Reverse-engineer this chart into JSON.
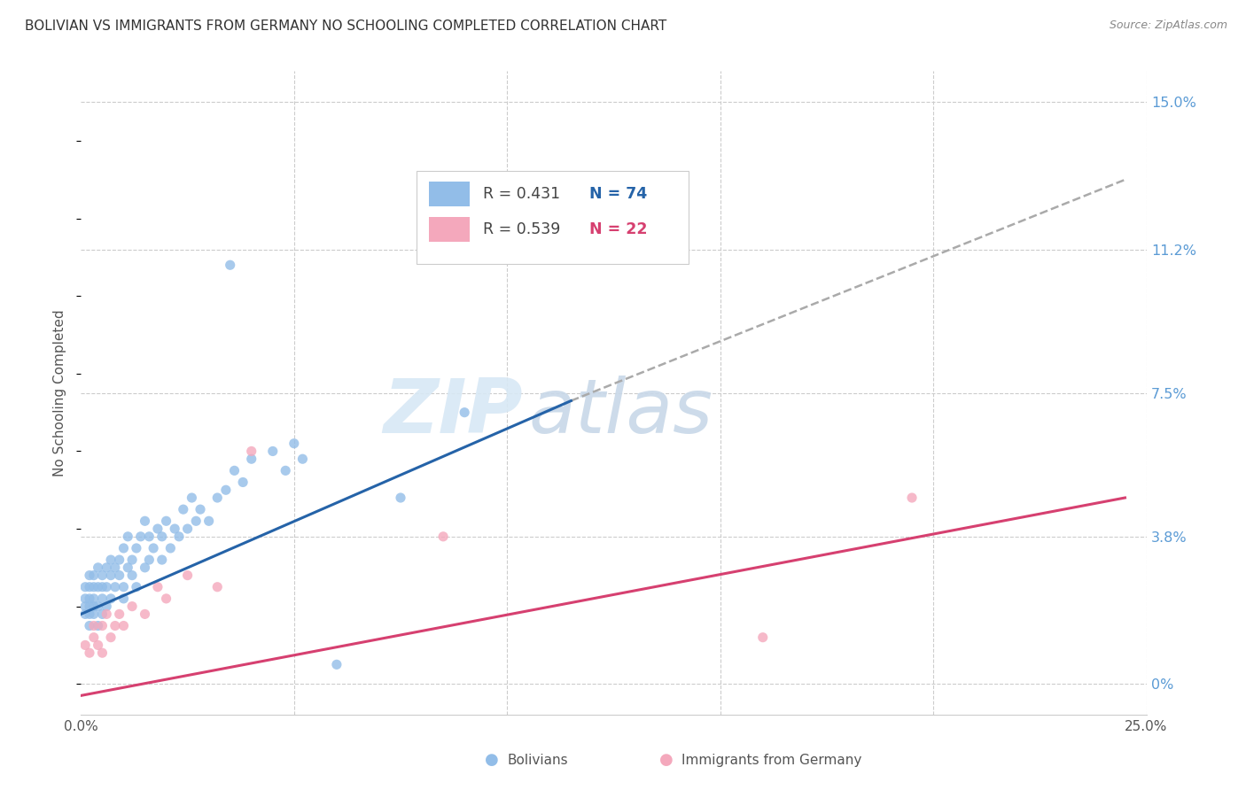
{
  "title": "BOLIVIAN VS IMMIGRANTS FROM GERMANY NO SCHOOLING COMPLETED CORRELATION CHART",
  "source": "Source: ZipAtlas.com",
  "ylabel": "No Schooling Completed",
  "xlim": [
    0.0,
    0.25
  ],
  "ylim": [
    -0.008,
    0.158
  ],
  "yticks": [
    0.0,
    0.038,
    0.075,
    0.112,
    0.15
  ],
  "ytick_labels": [
    "0%",
    "3.8%",
    "7.5%",
    "11.2%",
    "15.0%"
  ],
  "xticks": [
    0.0,
    0.05,
    0.1,
    0.15,
    0.2,
    0.25
  ],
  "xtick_labels": [
    "0.0%",
    "",
    "",
    "",
    "",
    "25.0%"
  ],
  "blue_color": "#92bde8",
  "pink_color": "#f4a8bc",
  "blue_line_color": "#2563a8",
  "pink_line_color": "#d64070",
  "dash_color": "#aaaaaa",
  "blue_R": "0.431",
  "blue_N": "74",
  "pink_R": "0.539",
  "pink_N": "22",
  "legend_label_blue": "Bolivians",
  "legend_label_pink": "Immigrants from Germany",
  "watermark_text": "ZIP",
  "watermark_text2": "atlas",
  "title_color": "#333333",
  "source_color": "#888888",
  "axis_label_color": "#555555",
  "right_axis_color": "#5b9bd5",
  "grid_color": "#cccccc",
  "blue_trend_x0": 0.0,
  "blue_trend_y0": 0.018,
  "blue_trend_x1": 0.115,
  "blue_trend_y1": 0.073,
  "dash_trend_x0": 0.115,
  "dash_trend_y0": 0.073,
  "dash_trend_x1": 0.245,
  "dash_trend_y1": 0.13,
  "pink_trend_x0": 0.0,
  "pink_trend_y0": -0.003,
  "pink_trend_x1": 0.245,
  "pink_trend_y1": 0.048,
  "blue_points_x": [
    0.001,
    0.001,
    0.001,
    0.001,
    0.002,
    0.002,
    0.002,
    0.002,
    0.002,
    0.002,
    0.003,
    0.003,
    0.003,
    0.003,
    0.003,
    0.004,
    0.004,
    0.004,
    0.004,
    0.005,
    0.005,
    0.005,
    0.005,
    0.006,
    0.006,
    0.006,
    0.007,
    0.007,
    0.007,
    0.008,
    0.008,
    0.009,
    0.009,
    0.01,
    0.01,
    0.01,
    0.011,
    0.011,
    0.012,
    0.012,
    0.013,
    0.013,
    0.014,
    0.015,
    0.015,
    0.016,
    0.016,
    0.017,
    0.018,
    0.019,
    0.019,
    0.02,
    0.021,
    0.022,
    0.023,
    0.024,
    0.025,
    0.026,
    0.027,
    0.028,
    0.03,
    0.032,
    0.034,
    0.036,
    0.038,
    0.04,
    0.045,
    0.048,
    0.05,
    0.052,
    0.035,
    0.06,
    0.075,
    0.09
  ],
  "blue_points_y": [
    0.02,
    0.022,
    0.025,
    0.018,
    0.02,
    0.022,
    0.025,
    0.028,
    0.018,
    0.015,
    0.022,
    0.025,
    0.02,
    0.028,
    0.018,
    0.025,
    0.03,
    0.02,
    0.015,
    0.022,
    0.025,
    0.028,
    0.018,
    0.03,
    0.025,
    0.02,
    0.028,
    0.032,
    0.022,
    0.03,
    0.025,
    0.032,
    0.028,
    0.025,
    0.035,
    0.022,
    0.03,
    0.038,
    0.032,
    0.028,
    0.035,
    0.025,
    0.038,
    0.03,
    0.042,
    0.032,
    0.038,
    0.035,
    0.04,
    0.032,
    0.038,
    0.042,
    0.035,
    0.04,
    0.038,
    0.045,
    0.04,
    0.048,
    0.042,
    0.045,
    0.042,
    0.048,
    0.05,
    0.055,
    0.052,
    0.058,
    0.06,
    0.055,
    0.062,
    0.058,
    0.108,
    0.005,
    0.048,
    0.07
  ],
  "pink_points_x": [
    0.001,
    0.002,
    0.003,
    0.003,
    0.004,
    0.005,
    0.005,
    0.006,
    0.007,
    0.008,
    0.009,
    0.01,
    0.012,
    0.015,
    0.018,
    0.02,
    0.025,
    0.032,
    0.04,
    0.085,
    0.16,
    0.195
  ],
  "pink_points_y": [
    0.01,
    0.008,
    0.012,
    0.015,
    0.01,
    0.015,
    0.008,
    0.018,
    0.012,
    0.015,
    0.018,
    0.015,
    0.02,
    0.018,
    0.025,
    0.022,
    0.028,
    0.025,
    0.06,
    0.038,
    0.012,
    0.048
  ]
}
